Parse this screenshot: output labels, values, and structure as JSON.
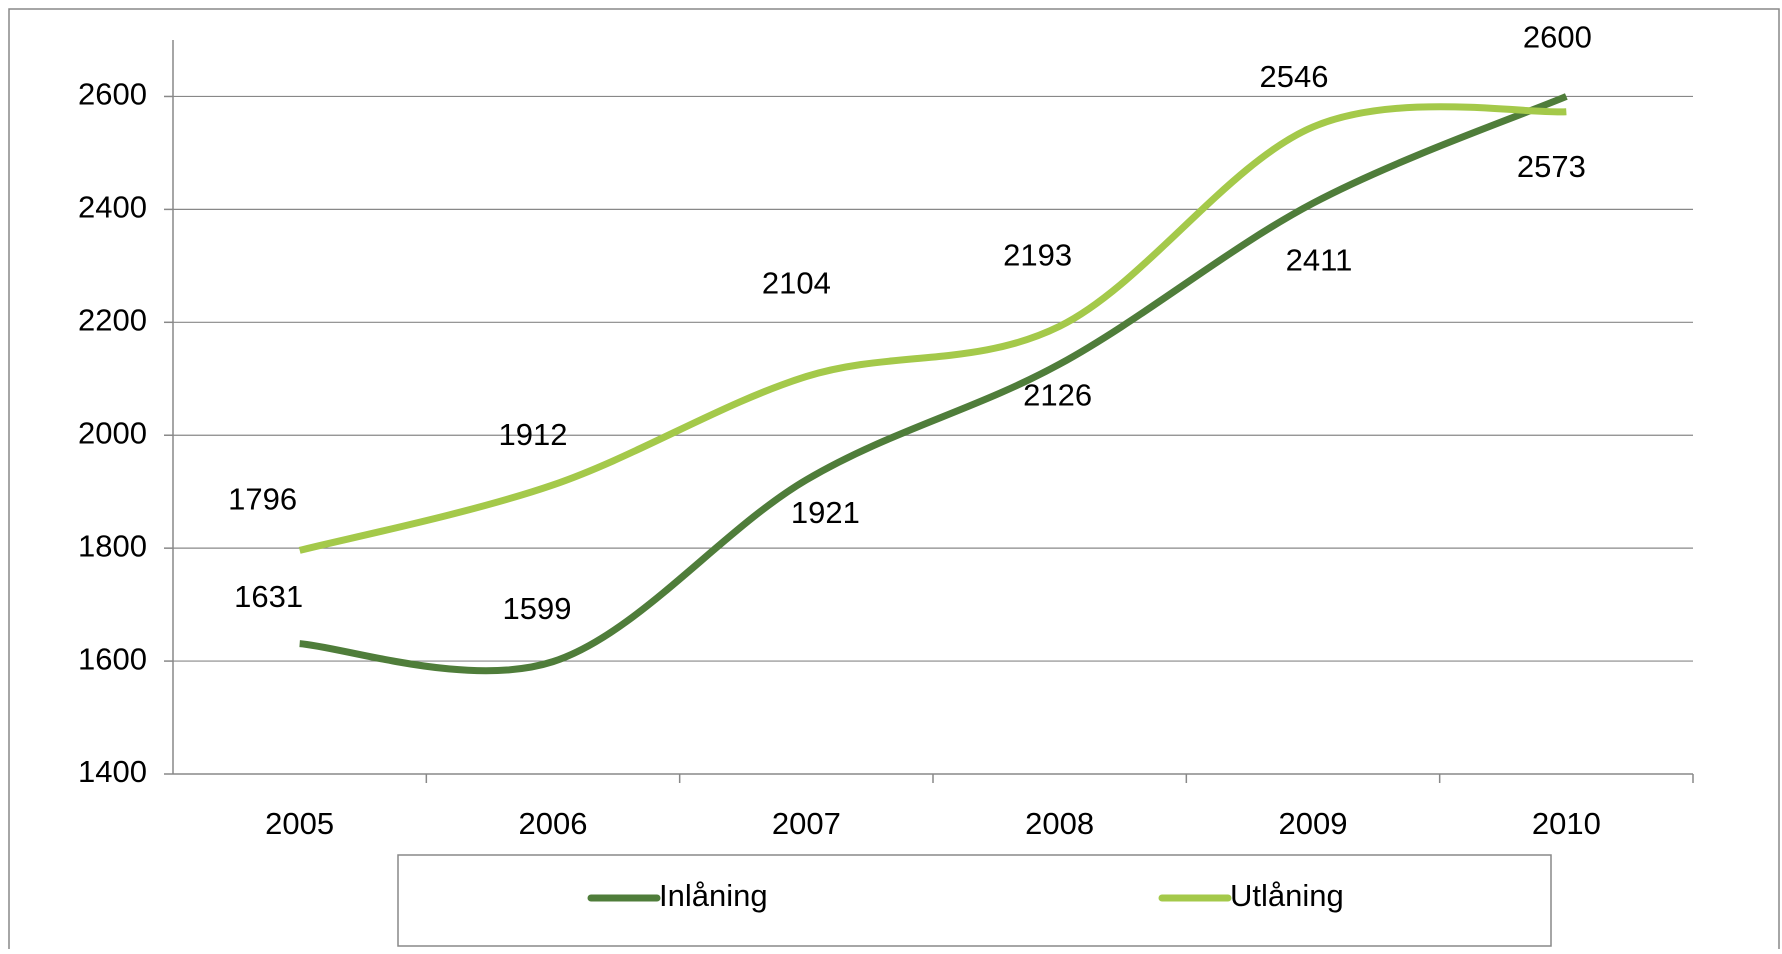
{
  "chart_data": {
    "type": "line",
    "categories": [
      "2005",
      "2006",
      "2007",
      "2008",
      "2009",
      "2010"
    ],
    "series": [
      {
        "name": "Inlåning",
        "color": "#4f7d3a",
        "values": [
          1631,
          1599,
          1921,
          2126,
          2411,
          2600
        ]
      },
      {
        "name": "Utlåning",
        "color": "#a4c94a",
        "values": [
          1796,
          1912,
          2104,
          2193,
          2546,
          2573
        ]
      }
    ],
    "ylim": [
      1400,
      2700
    ],
    "yticks": [
      1400,
      1600,
      1800,
      2000,
      2200,
      2400,
      2600
    ],
    "grid": true,
    "smooth": true,
    "legend": "bottom"
  }
}
